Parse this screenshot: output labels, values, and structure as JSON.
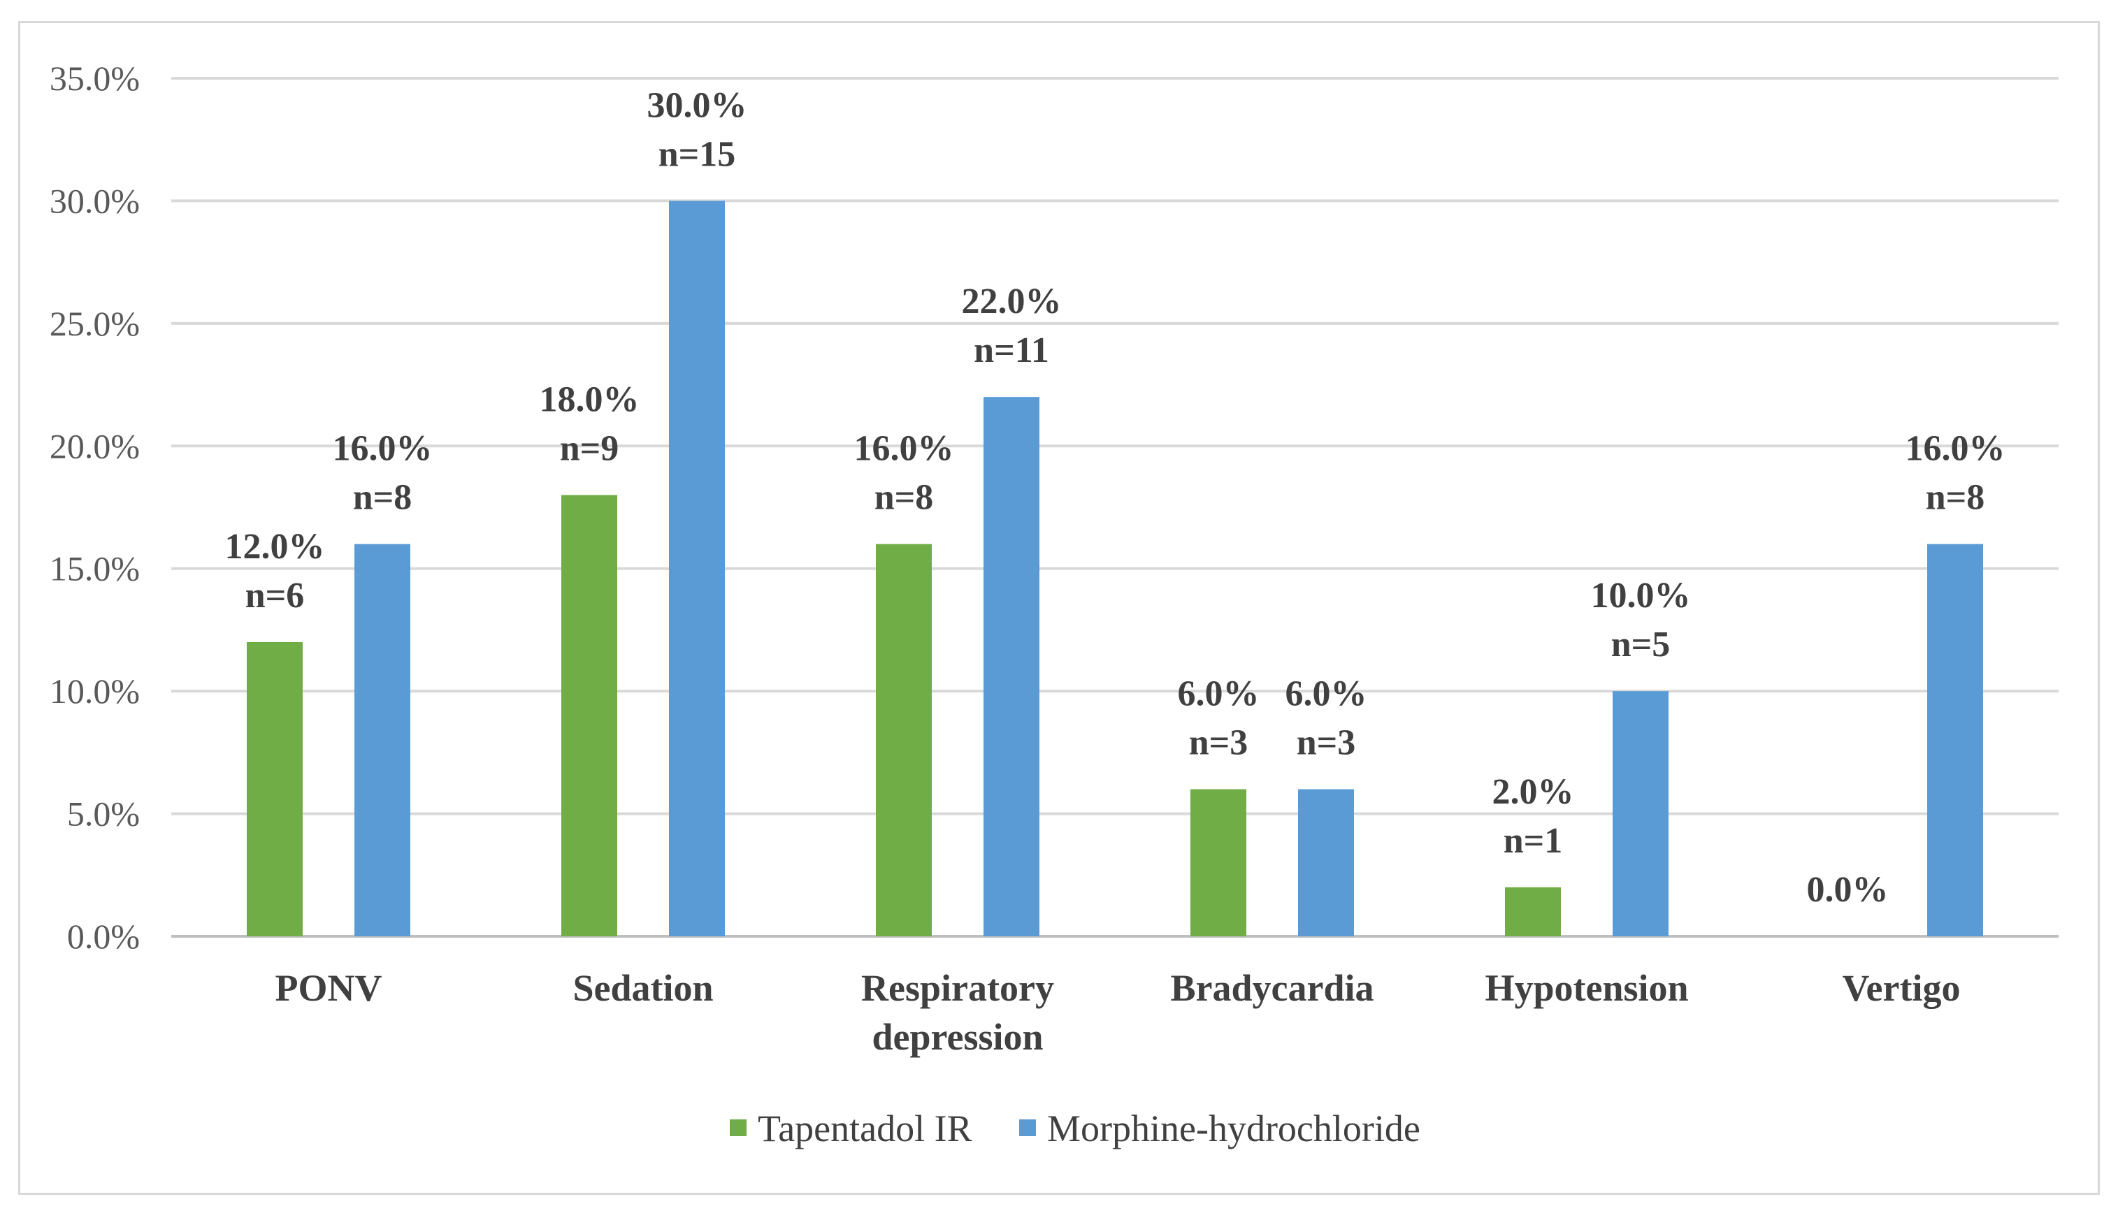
{
  "chart_data": {
    "type": "bar",
    "title": "",
    "xlabel": "",
    "ylabel": "",
    "ylim": [
      0,
      35
    ],
    "yticks": [
      "0.0%",
      "5.0%",
      "10.0%",
      "15.0%",
      "20.0%",
      "25.0%",
      "30.0%",
      "35.0%"
    ],
    "grid": true,
    "legend_position": "bottom",
    "categories": [
      [
        "PONV"
      ],
      [
        "Sedation"
      ],
      [
        "Respiratory",
        "depression"
      ],
      [
        "Bradycardia"
      ],
      [
        "Hypotension"
      ],
      [
        "Vertigo"
      ]
    ],
    "series": [
      {
        "name": "Tapentadol IR",
        "color": "#70ad47",
        "values": [
          12,
          18,
          16,
          6,
          2,
          0
        ],
        "labels": [
          [
            "12.0%",
            "n=6"
          ],
          [
            "18.0%",
            "n=9"
          ],
          [
            "16.0%",
            "n=8"
          ],
          [
            "6.0%",
            "n=3"
          ],
          [
            "2.0%",
            "n=1"
          ],
          [
            "0.0%"
          ]
        ]
      },
      {
        "name": "Morphine-hydrochloride",
        "color": "#5b9bd5",
        "values": [
          16,
          30,
          22,
          6,
          10,
          16
        ],
        "labels": [
          [
            "16.0%",
            "n=8"
          ],
          [
            "30.0%",
            "n=15"
          ],
          [
            "22.0%",
            "n=11"
          ],
          [
            "6.0%",
            "n=3"
          ],
          [
            "10.0%",
            "n=5"
          ],
          [
            "16.0%",
            "n=8"
          ]
        ]
      }
    ]
  }
}
